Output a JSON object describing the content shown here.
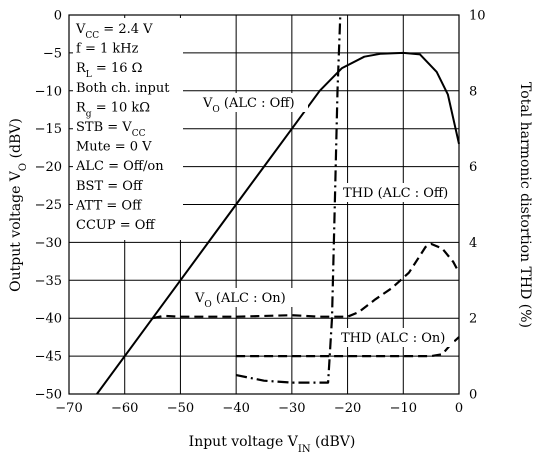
{
  "chart_data": {
    "type": "line",
    "title": "",
    "xlabel": {
      "main": "Input voltage  V",
      "sub": "IN",
      "unit": "  (dBV)"
    },
    "ylabel_left": {
      "main": "Output voltage  V",
      "sub": "O",
      "unit": "  (dBV)"
    },
    "ylabel_right": "Total harmonic distortion  THD  (%)",
    "xlim": [
      -70,
      0
    ],
    "ylim_left": [
      -50,
      0
    ],
    "ylim_right": [
      0,
      10
    ],
    "grid": true,
    "x_ticks": [
      "−70",
      "−60",
      "−50",
      "−40",
      "−30",
      "−20",
      "−10",
      "0"
    ],
    "y_left_ticks": [
      "−50",
      "−45",
      "−40",
      "−35",
      "−30",
      "−25",
      "−20",
      "−15",
      "−10",
      "−5",
      "0"
    ],
    "y_right_ticks": [
      "0",
      "2",
      "4",
      "6",
      "8",
      "10"
    ],
    "conditions": [
      {
        "main": "V",
        "sub": "CC",
        "rest": " = 2.4 V"
      },
      {
        "main": "f = 1 kHz",
        "sub": "",
        "rest": ""
      },
      {
        "main": "R",
        "sub": "L",
        "rest": " = 16 Ω"
      },
      {
        "main": "Both ch. input",
        "sub": "",
        "rest": ""
      },
      {
        "main": "R",
        "sub": "g",
        "rest": " = 10 kΩ"
      },
      {
        "main": "STB = V",
        "sub": "CC",
        "rest": ""
      },
      {
        "main": "Mute = 0 V",
        "sub": "",
        "rest": ""
      },
      {
        "main": "ALC = Off/on",
        "sub": "",
        "rest": ""
      },
      {
        "main": "BST = Off",
        "sub": "",
        "rest": ""
      },
      {
        "main": "ATT = Off",
        "sub": "",
        "rest": ""
      },
      {
        "main": "CCUP = Off",
        "sub": "",
        "rest": ""
      }
    ],
    "series": [
      {
        "name": "V_O (ALC : Off)",
        "axis": "left",
        "style": "solid",
        "label": {
          "main": "V",
          "sub": "O",
          "rest": " (ALC : Off)"
        },
        "points": [
          [
            -65,
            -50
          ],
          [
            -55,
            -40
          ],
          [
            -45,
            -30
          ],
          [
            -40,
            -25
          ],
          [
            -35,
            -20
          ],
          [
            -30,
            -15
          ],
          [
            -25,
            -10
          ],
          [
            -21,
            -7
          ],
          [
            -17,
            -5.5
          ],
          [
            -14,
            -5.1
          ],
          [
            -10,
            -5
          ],
          [
            -7,
            -5.2
          ],
          [
            -4,
            -7.5
          ],
          [
            -2,
            -10.5
          ],
          [
            0,
            -17
          ]
        ]
      },
      {
        "name": "V_O (ALC : On)",
        "axis": "left",
        "style": "dashed",
        "label": {
          "main": "V",
          "sub": "O",
          "rest": " (ALC : On)"
        },
        "points": [
          [
            -55,
            -40
          ],
          [
            -53,
            -39.7
          ],
          [
            -50,
            -39.8
          ],
          [
            -40,
            -39.8
          ],
          [
            -30,
            -39.6
          ],
          [
            -25,
            -39.8
          ],
          [
            -20,
            -39.8
          ],
          [
            -18,
            -39.2
          ],
          [
            -15,
            -37.5
          ],
          [
            -12,
            -36
          ],
          [
            -9,
            -34
          ],
          [
            -6,
            -30.6
          ],
          [
            -5,
            -30.2
          ],
          [
            -3,
            -30.8
          ],
          [
            -1,
            -32.6
          ],
          [
            0,
            -34
          ]
        ]
      },
      {
        "name": "THD (ALC : Off)",
        "axis": "right",
        "style": "dashdot",
        "label": {
          "main": "THD (ALC : Off)",
          "sub": "",
          "rest": ""
        },
        "points": [
          [
            -40,
            0.5
          ],
          [
            -35,
            0.35
          ],
          [
            -30,
            0.3
          ],
          [
            -25,
            0.3
          ],
          [
            -23.5,
            0.3
          ],
          [
            -22.8,
            2
          ],
          [
            -22.3,
            5
          ],
          [
            -21.8,
            8
          ],
          [
            -21.3,
            10
          ]
        ]
      },
      {
        "name": "THD (ALC : On)",
        "axis": "right",
        "style": "dashed",
        "label": {
          "main": "THD (ALC : On)",
          "sub": "",
          "rest": ""
        },
        "points": [
          [
            -40,
            1.0
          ],
          [
            -30,
            1.0
          ],
          [
            -20,
            1.0
          ],
          [
            -10,
            1.0
          ],
          [
            -5,
            1.0
          ],
          [
            -3,
            1.05
          ],
          [
            -1.5,
            1.3
          ],
          [
            0,
            1.5
          ]
        ]
      }
    ]
  }
}
